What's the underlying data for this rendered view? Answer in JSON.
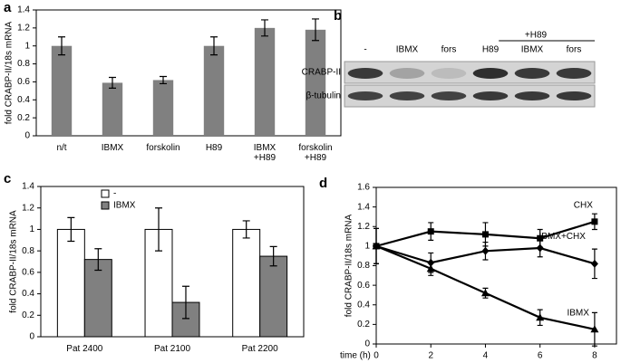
{
  "chart_data": [
    {
      "panel": "a",
      "type": "bar",
      "ylabel": "fold CRABP-II/18s mRNA",
      "categories": [
        "n/t",
        "IBMX",
        "forskolin",
        "H89",
        "IBMX\n+H89",
        "forskolin\n+H89"
      ],
      "series": [
        {
          "color": "#808080",
          "values": [
            1.0,
            0.59,
            0.62,
            1.0,
            1.2,
            1.18
          ],
          "errors": [
            0.1,
            0.06,
            0.04,
            0.1,
            0.09,
            0.12
          ]
        }
      ],
      "ylim": [
        0,
        1.4
      ],
      "yticks": [
        0,
        0.2,
        0.4,
        0.6,
        0.8,
        1,
        1.2,
        1.4
      ],
      "grid": false
    },
    {
      "panel": "c",
      "type": "bar",
      "ylabel": "fold CRABP-II/18s mRNA",
      "categories": [
        "Pat 2400",
        "Pat 2100",
        "Pat 2200"
      ],
      "series": [
        {
          "name": "-",
          "color": "#ffffff",
          "values": [
            1.0,
            1.0,
            1.0
          ],
          "errors": [
            0.11,
            0.2,
            0.08
          ]
        },
        {
          "name": "IBMX",
          "color": "#808080",
          "values": [
            0.72,
            0.32,
            0.75
          ],
          "errors": [
            0.1,
            0.15,
            0.09
          ]
        }
      ],
      "legend": "upper left",
      "ylim": [
        0,
        1.4
      ],
      "yticks": [
        0,
        0.2,
        0.4,
        0.6,
        0.8,
        1,
        1.2,
        1.4
      ],
      "grid": false
    },
    {
      "panel": "d",
      "type": "line",
      "ylabel": "fold CRABP-II/18s mRNA",
      "xlabel": "time (h)",
      "x": [
        0,
        2,
        4,
        6,
        8
      ],
      "xlim": [
        0,
        8.8
      ],
      "xticks": [
        0,
        2,
        4,
        6,
        8
      ],
      "series": [
        {
          "name": "CHX",
          "color": "#000000",
          "marker": "square",
          "values": [
            1.0,
            1.15,
            1.12,
            1.08,
            1.25
          ],
          "errors": [
            0.18,
            0.09,
            0.12,
            0.09,
            0.08
          ]
        },
        {
          "name": "IBMX+CHX",
          "color": "#000000",
          "marker": "diamond",
          "values": [
            1.0,
            0.83,
            0.95,
            0.98,
            0.82
          ],
          "errors": [
            0.18,
            0.1,
            0.09,
            0.09,
            0.15
          ]
        },
        {
          "name": "IBMX",
          "color": "#000000",
          "marker": "triangle",
          "values": [
            1.0,
            0.77,
            0.52,
            0.27,
            0.15
          ],
          "errors": [
            0.18,
            0.07,
            0.05,
            0.08,
            0.17
          ]
        }
      ],
      "ylim": [
        0,
        1.6
      ],
      "yticks": [
        0,
        0.2,
        0.4,
        0.6,
        0.8,
        1,
        1.2,
        1.4,
        1.6
      ],
      "grid": false
    }
  ],
  "blot": {
    "panel": "b",
    "lanes": [
      "-",
      "IBMX",
      "fors",
      "H89",
      "IBMX",
      "fors"
    ],
    "group_label": "+H89",
    "rows": [
      "CRABP-II",
      "β-tubulin"
    ]
  }
}
